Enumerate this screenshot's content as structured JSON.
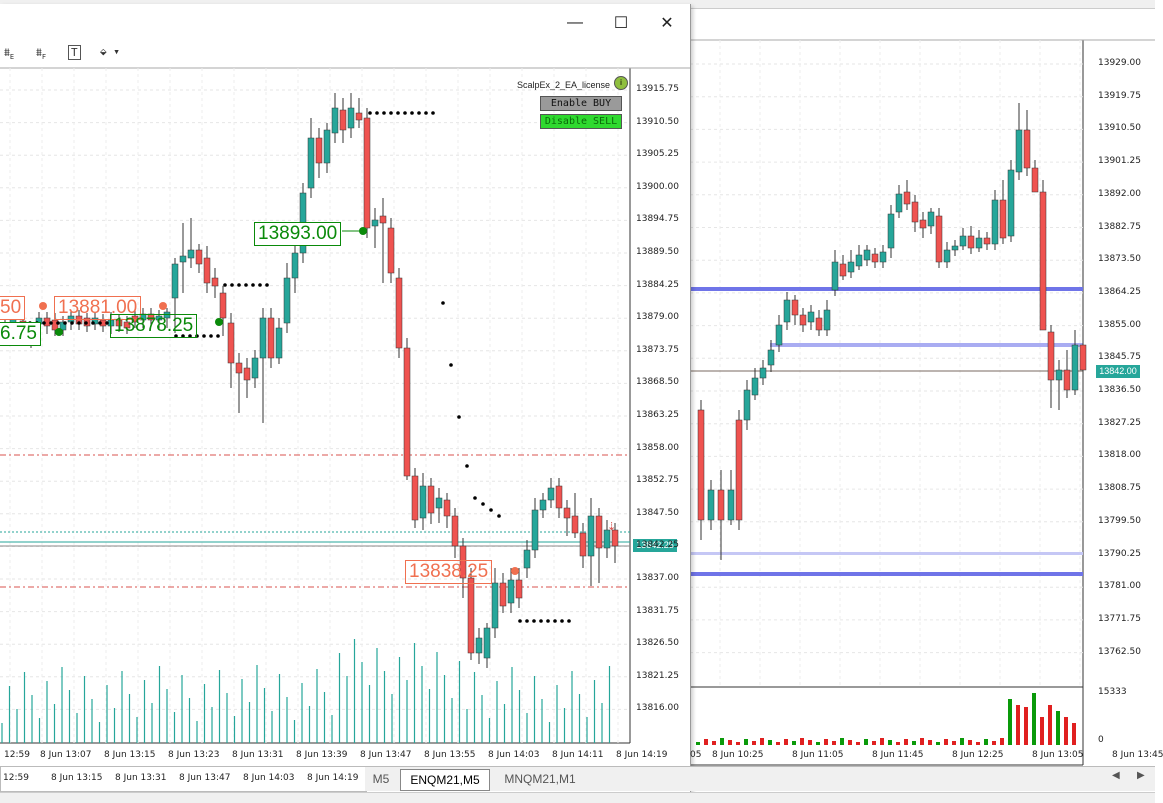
{
  "left_window": {
    "toolbar_icons": [
      "chart-objects-e-icon",
      "chart-objects-f-icon",
      "text-tool-icon",
      "shapes-dropdown-icon"
    ],
    "title_buttons": {
      "minimize": "—",
      "maximize": "☐",
      "close": "✕"
    },
    "ea": {
      "name": "ScalpEx_2_EA_license",
      "enable_buy": "Enable BUY",
      "disable_sell": "Disable SELL"
    },
    "price_axis": [
      "13915.75",
      "13910.50",
      "13905.25",
      "13900.00",
      "13894.75",
      "13889.50",
      "13884.25",
      "13879.00",
      "13873.75",
      "13868.50",
      "13863.25",
      "13858.00",
      "13852.75",
      "13847.50",
      "13842.25",
      "13837.00",
      "13831.75",
      "13826.50",
      "13821.25",
      "13816.00"
    ],
    "current_price": "13842.25",
    "trade_labels": {
      "buy_main": "13893.00",
      "buy_left": "13878.25",
      "buy_edge": "6.75",
      "sell_left": "13881.00",
      "sell_edge": "50",
      "sell_bottom": "13838.25"
    },
    "time_axis": [
      "12:59",
      "8 Jun 13:07",
      "8 Jun 13:15",
      "8 Jun 13:23",
      "8 Jun 13:31",
      "8 Jun 13:39",
      "8 Jun 13:47",
      "8 Jun 13:55",
      "8 Jun 14:03",
      "8 Jun 14:11",
      "8 Jun 14:19"
    ],
    "lower_time_axis": [
      "12:59",
      "8 Jun 13:15",
      "8 Jun 13:31",
      "8 Jun 13:47",
      "8 Jun 14:03",
      "8 Jun 14:19"
    ]
  },
  "right_chart": {
    "price_axis": [
      "13929.00",
      "13919.75",
      "13910.50",
      "13901.25",
      "13892.00",
      "13882.75",
      "13873.50",
      "13864.25",
      "13855.00",
      "13845.75",
      "13836.50",
      "13827.25",
      "13818.00",
      "13808.75",
      "13799.50",
      "13790.25",
      "13781.00",
      "13771.75",
      "13762.50"
    ],
    "current_price": "13842.00",
    "volume_axis": [
      "15333",
      "0"
    ],
    "time_axis": [
      "05",
      "8 Jun 10:25",
      "8 Jun 11:05",
      "8 Jun 11:45",
      "8 Jun 12:25",
      "8 Jun 13:05",
      "8 Jun 13:45"
    ]
  },
  "tabs": [
    {
      "label": "M5",
      "active": false
    },
    {
      "label": "ENQM21,M5",
      "active": true
    },
    {
      "label": "MNQM21,M1",
      "active": false
    }
  ],
  "colors": {
    "bull": "#26a69a",
    "bear": "#ef5350",
    "buy": "#0a8a0a",
    "sell": "#f07050",
    "blue_line": "#6f74e8"
  }
}
